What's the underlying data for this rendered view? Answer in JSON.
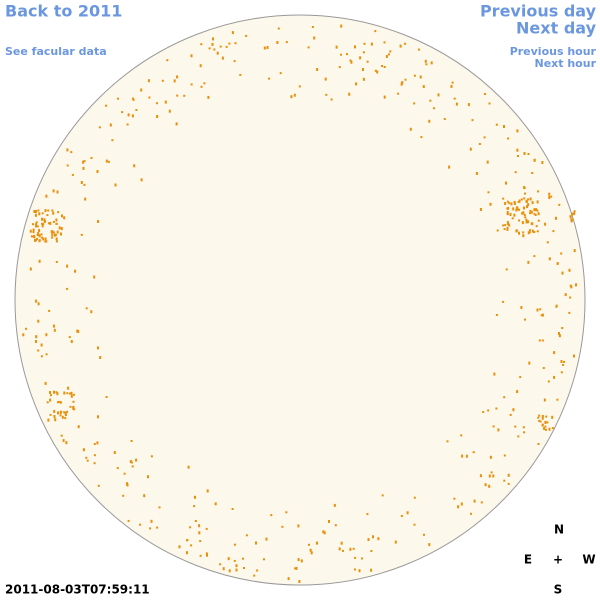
{
  "header": {
    "back_link": "Back to 2011",
    "facular_link": "See facular data",
    "previous_day": "Previous day",
    "next_day": "Next day",
    "previous_hour": "Previous hour",
    "next_hour": "Next hour"
  },
  "timestamp": "2011-08-03T07:59:11",
  "compass": {
    "north": "N",
    "east": "E",
    "center": "+",
    "west": "W",
    "south": "S"
  }
}
